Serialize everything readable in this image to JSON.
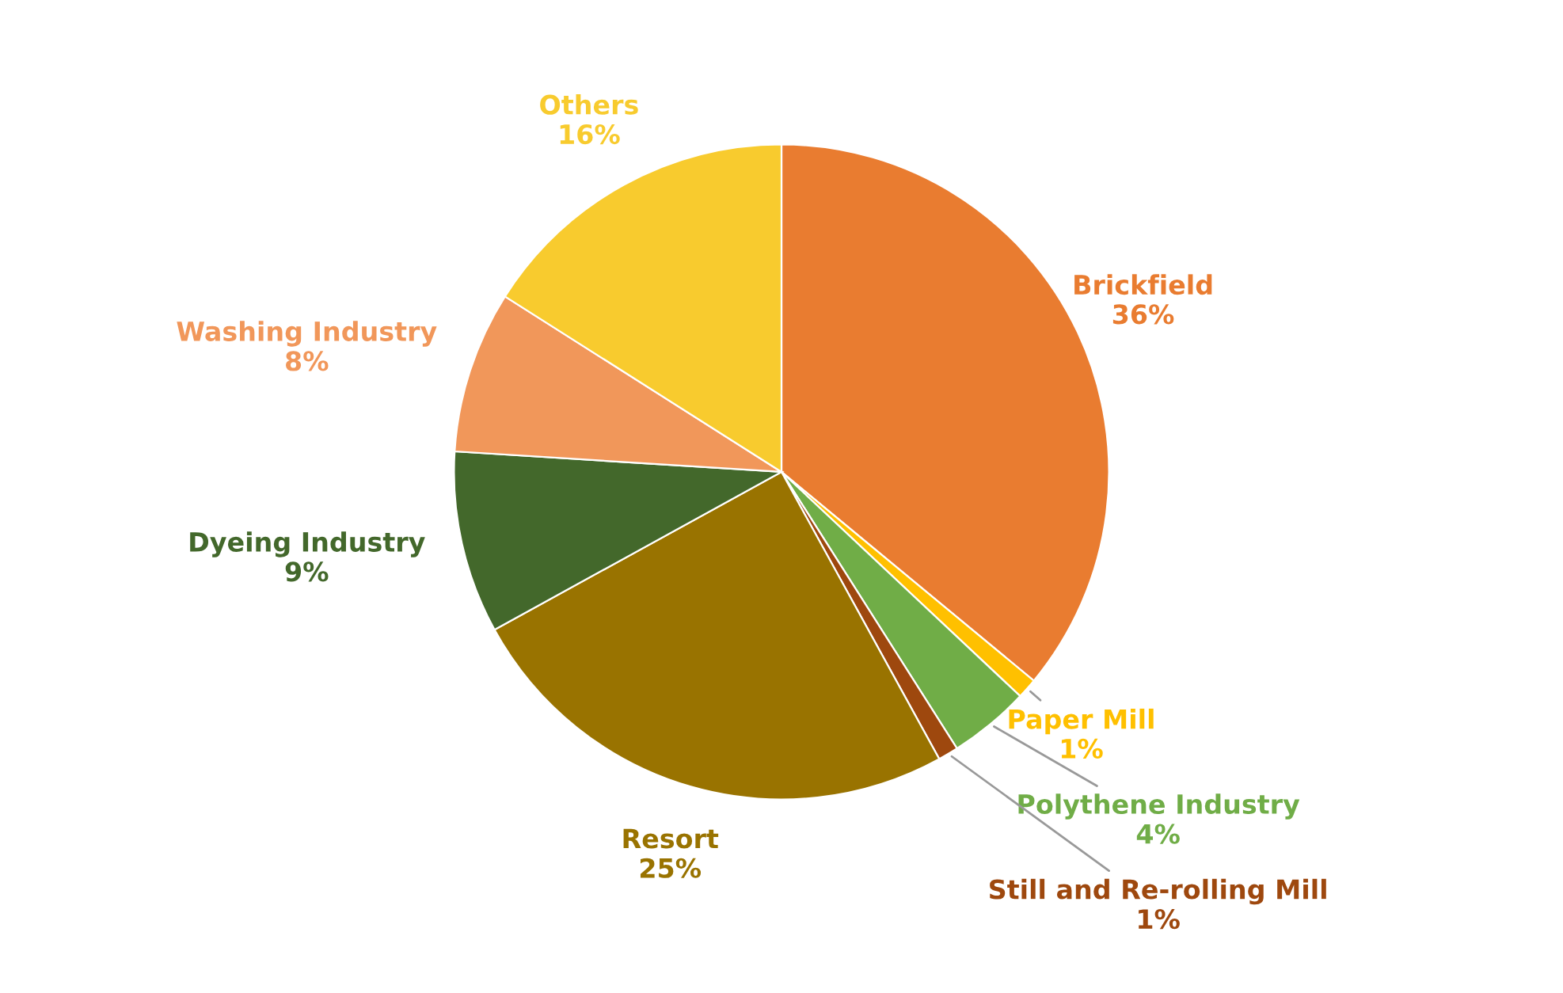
{
  "chart_data": {
    "type": "pie",
    "categories": [
      "Brickfield",
      "Paper Mill",
      "Polythene Industry",
      "Still and Re-rolling Mill",
      "Resort",
      "Dyeing Industry",
      "Washing Industry",
      "Others"
    ],
    "values": [
      36,
      1,
      4,
      1,
      25,
      9,
      8,
      16
    ],
    "value_labels": [
      "36%",
      "1%",
      "4%",
      "1%",
      "25%",
      "9%",
      "8%",
      "16%"
    ],
    "colors": [
      "#e97c30",
      "#ffc000",
      "#70ad47",
      "#9e480e",
      "#997300",
      "#43682b",
      "#f1975a",
      "#f8cb2e"
    ]
  }
}
